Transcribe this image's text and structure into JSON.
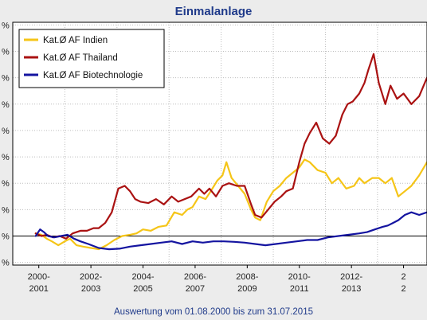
{
  "chart_data": {
    "type": "line",
    "title": "Einmalanlage",
    "footer": "Auswertung vom 01.08.2000 bis zum 31.07.2015",
    "xlabel": "",
    "ylabel": "",
    "y_tick_labels": [
      "%",
      "%",
      "%",
      "%",
      "%",
      "%",
      "%",
      "%",
      "%",
      "%"
    ],
    "x_tick_labels": [
      [
        "2000-",
        "2001"
      ],
      [
        "2002-",
        "2003"
      ],
      [
        "2004-",
        "2005"
      ],
      [
        "2006-",
        "2007"
      ],
      [
        "2008-",
        "2009"
      ],
      [
        "2010-",
        "2011"
      ],
      [
        "2012-",
        "2013"
      ],
      [
        "2",
        "2"
      ]
    ],
    "x_tick_positions": [
      2000.7,
      2002.7,
      2004.7,
      2006.7,
      2008.7,
      2010.7,
      2012.7,
      2014.7
    ],
    "x_grid": [
      2001.7,
      2003.7,
      2005.7,
      2007.7,
      2009.7,
      2011.7,
      2013.7
    ],
    "xlim": [
      1999.7,
      2015.6
    ],
    "ylim": [
      -1.1,
      8.1
    ],
    "grid": true,
    "legend_position": "top-left",
    "series": [
      {
        "name": "Kat.Ø AF Indien",
        "color": "#f5c518",
        "x": [
          2000.58,
          2000.8,
          2001.0,
          2001.2,
          2001.45,
          2001.7,
          2001.9,
          2002.15,
          2002.4,
          2002.7,
          2003.0,
          2003.3,
          2003.6,
          2003.9,
          2004.2,
          2004.45,
          2004.7,
          2005.0,
          2005.3,
          2005.6,
          2005.9,
          2006.2,
          2006.4,
          2006.6,
          2006.85,
          2007.1,
          2007.3,
          2007.55,
          2007.75,
          2007.9,
          2008.1,
          2008.35,
          2008.6,
          2008.85,
          2009.0,
          2009.2,
          2009.45,
          2009.7,
          2009.95,
          2010.2,
          2010.45,
          2010.7,
          2010.9,
          2011.1,
          2011.4,
          2011.7,
          2011.95,
          2012.2,
          2012.5,
          2012.8,
          2013.0,
          2013.2,
          2013.5,
          2013.75,
          2014.0,
          2014.25,
          2014.5,
          2014.75,
          2015.0,
          2015.3,
          2015.6
        ],
        "y": [
          0.1,
          0.05,
          -0.1,
          -0.2,
          -0.35,
          -0.2,
          -0.1,
          -0.35,
          -0.4,
          -0.45,
          -0.5,
          -0.35,
          -0.15,
          0.0,
          0.05,
          0.1,
          0.25,
          0.2,
          0.35,
          0.4,
          0.9,
          0.8,
          1.0,
          1.1,
          1.5,
          1.4,
          1.7,
          2.1,
          2.3,
          2.8,
          2.2,
          1.9,
          1.6,
          1.0,
          0.7,
          0.6,
          1.3,
          1.7,
          1.9,
          2.2,
          2.4,
          2.6,
          2.9,
          2.8,
          2.5,
          2.4,
          2.0,
          2.2,
          1.8,
          1.9,
          2.2,
          2.0,
          2.2,
          2.2,
          2.0,
          2.2,
          1.5,
          1.7,
          1.9,
          2.3,
          2.8
        ]
      },
      {
        "name": "Kat.Ø AF Thailand",
        "color": "#aa1212",
        "x": [
          2000.58,
          2000.8,
          2001.0,
          2001.25,
          2001.5,
          2001.75,
          2002.0,
          2002.3,
          2002.55,
          2002.8,
          2003.0,
          2003.25,
          2003.5,
          2003.75,
          2004.0,
          2004.2,
          2004.4,
          2004.6,
          2004.9,
          2005.2,
          2005.5,
          2005.8,
          2006.05,
          2006.3,
          2006.55,
          2006.85,
          2007.05,
          2007.25,
          2007.5,
          2007.75,
          2008.0,
          2008.3,
          2008.6,
          2008.85,
          2009.0,
          2009.25,
          2009.5,
          2009.75,
          2010.0,
          2010.2,
          2010.45,
          2010.7,
          2010.9,
          2011.1,
          2011.35,
          2011.6,
          2011.85,
          2012.1,
          2012.35,
          2012.55,
          2012.75,
          2013.0,
          2013.2,
          2013.35,
          2013.55,
          2013.75,
          2014.0,
          2014.2,
          2014.45,
          2014.7,
          2015.0,
          2015.3,
          2015.6
        ],
        "y": [
          0.1,
          0.0,
          0.05,
          -0.05,
          0.0,
          -0.1,
          0.1,
          0.2,
          0.2,
          0.3,
          0.3,
          0.5,
          0.9,
          1.8,
          1.9,
          1.7,
          1.4,
          1.3,
          1.25,
          1.4,
          1.2,
          1.5,
          1.3,
          1.4,
          1.5,
          1.8,
          1.6,
          1.8,
          1.5,
          1.9,
          2.0,
          1.9,
          1.9,
          1.2,
          0.8,
          0.7,
          1.0,
          1.3,
          1.5,
          1.7,
          1.8,
          2.8,
          3.5,
          3.9,
          4.3,
          3.7,
          3.5,
          3.8,
          4.6,
          5.0,
          5.1,
          5.4,
          5.8,
          6.3,
          6.9,
          5.8,
          5.0,
          5.7,
          5.2,
          5.4,
          5.0,
          5.3,
          6.0
        ]
      },
      {
        "name": "Kat.Ø AF Biotechnologie",
        "color": "#1414a0",
        "x": [
          2000.58,
          2000.75,
          2000.9,
          2001.05,
          2001.3,
          2001.55,
          2001.8,
          2002.05,
          2002.3,
          2002.6,
          2003.0,
          2003.4,
          2003.8,
          2004.2,
          2004.6,
          2005.0,
          2005.4,
          2005.8,
          2006.2,
          2006.6,
          2007.0,
          2007.4,
          2007.8,
          2008.2,
          2008.6,
          2009.0,
          2009.4,
          2009.8,
          2010.2,
          2010.6,
          2011.0,
          2011.4,
          2011.8,
          2012.2,
          2012.6,
          2013.0,
          2013.3,
          2013.6,
          2013.9,
          2014.1,
          2014.3,
          2014.5,
          2014.75,
          2015.0,
          2015.3,
          2015.6
        ],
        "y": [
          0.0,
          0.25,
          0.15,
          0.0,
          -0.05,
          0.0,
          0.05,
          -0.1,
          -0.2,
          -0.3,
          -0.45,
          -0.5,
          -0.48,
          -0.4,
          -0.35,
          -0.3,
          -0.25,
          -0.2,
          -0.3,
          -0.2,
          -0.25,
          -0.2,
          -0.2,
          -0.22,
          -0.25,
          -0.3,
          -0.35,
          -0.3,
          -0.25,
          -0.2,
          -0.15,
          -0.15,
          -0.05,
          0.0,
          0.05,
          0.1,
          0.15,
          0.25,
          0.35,
          0.4,
          0.5,
          0.6,
          0.8,
          0.9,
          0.8,
          0.9
        ]
      }
    ]
  }
}
